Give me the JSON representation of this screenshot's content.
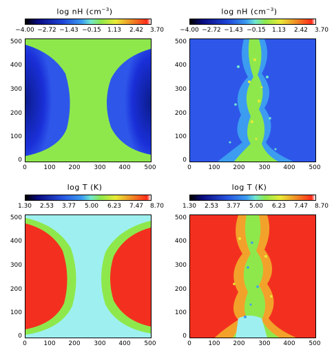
{
  "panels": {
    "tl": {
      "title_text": "log nH (cm",
      "title_exp": "−3",
      "title_close": ")",
      "cb_ticks": [
        "−4.00",
        "−2.72",
        "−1.43",
        "−0.15",
        "1.13",
        "2.42",
        "3.70"
      ]
    },
    "tr": {
      "title_text": "log nH (cm",
      "title_exp": "−3",
      "title_close": ")",
      "cb_ticks": [
        "−4.00",
        "−2.72",
        "−1.43",
        "−0.15",
        "1.13",
        "2.42",
        "3.70"
      ]
    },
    "bl": {
      "title_text": "log T (K)",
      "cb_ticks": [
        "1.30",
        "2.53",
        "3.77",
        "5.00",
        "6.23",
        "7.47",
        "8.70"
      ]
    },
    "br": {
      "title_text": "log T (K)",
      "cb_ticks": [
        "1.30",
        "2.53",
        "3.77",
        "5.00",
        "6.23",
        "7.47",
        "8.70"
      ]
    }
  },
  "axes": {
    "x_ticks": [
      "0",
      "100",
      "200",
      "300",
      "400",
      "500"
    ],
    "y_ticks": [
      "500",
      "400",
      "300",
      "200",
      "100",
      "0"
    ]
  },
  "colors": {
    "green": "#8ee84c",
    "deep_blue": "#1a2fd8",
    "mid_blue": "#2e57ea",
    "light_cyan": "#9ef0f0",
    "red": "#f3301f",
    "orange": "#f2a22a"
  }
}
